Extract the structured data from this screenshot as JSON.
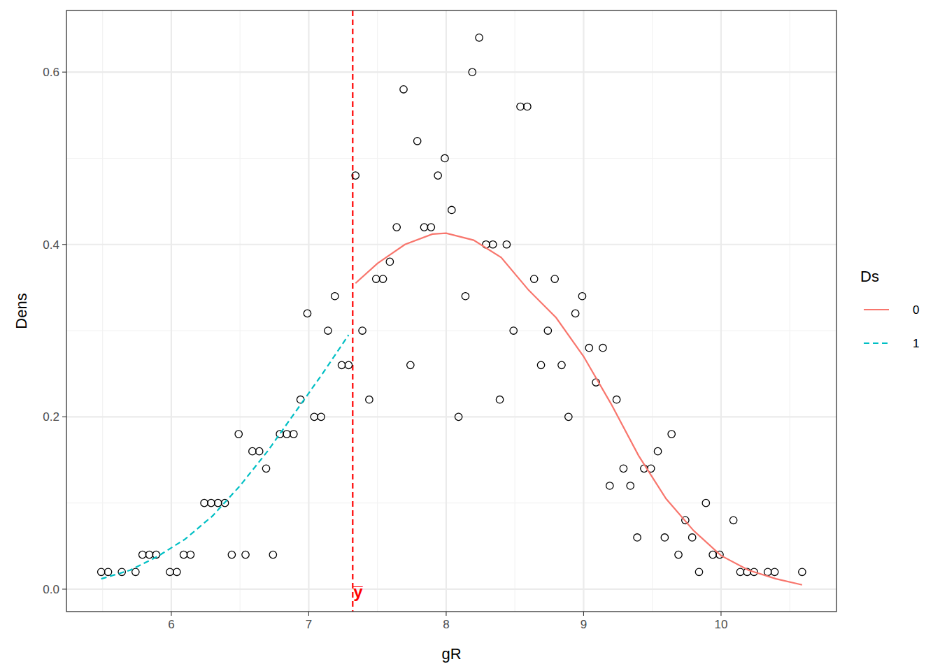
{
  "chart_data": {
    "type": "scatter",
    "x_label": "gR",
    "y_label": "Dens",
    "xlim": [
      5.237,
      10.84
    ],
    "ylim": [
      -0.026,
      0.6715
    ],
    "xticks": [
      6,
      7,
      8,
      9,
      10
    ],
    "yticks": [
      {
        "value": 0,
        "label": "0.0"
      },
      0.2,
      0.4,
      0.6
    ],
    "grid": true,
    "legend": "right",
    "legend_title": "Ds",
    "series": [
      {
        "type": "scatter",
        "marker": "open-circle",
        "color": "#000000",
        "x": [
          5.49,
          5.54,
          5.64,
          5.74,
          5.79,
          5.84,
          5.89,
          5.99,
          6.04,
          6.09,
          6.14,
          6.24,
          6.29,
          6.34,
          6.39,
          6.44,
          6.49,
          6.54,
          6.59,
          6.64,
          6.69,
          6.74,
          6.79,
          6.84,
          6.89,
          6.94,
          6.99,
          7.04,
          7.09,
          7.14,
          7.19,
          7.24,
          7.29,
          7.34,
          7.39,
          7.44,
          7.49,
          7.54,
          7.59,
          7.64,
          7.69,
          7.74,
          7.79,
          7.84,
          7.89,
          7.94,
          7.99,
          8.04,
          8.09,
          8.14,
          8.19,
          8.24,
          8.29,
          8.34,
          8.39,
          8.44,
          8.49,
          8.54,
          8.59,
          8.64,
          8.69,
          8.74,
          8.79,
          8.84,
          8.89,
          8.94,
          8.99,
          9.04,
          9.09,
          9.14,
          9.19,
          9.24,
          9.29,
          9.34,
          9.39,
          9.44,
          9.49,
          9.54,
          9.59,
          9.64,
          9.69,
          9.74,
          9.79,
          9.84,
          9.89,
          9.94,
          9.99,
          10.09,
          10.14,
          10.19,
          10.24,
          10.34,
          10.39,
          10.59
        ],
        "values": [
          0.02,
          0.02,
          0.02,
          0.02,
          0.04,
          0.04,
          0.04,
          0.02,
          0.02,
          0.04,
          0.04,
          0.1,
          0.1,
          0.1,
          0.1,
          0.04,
          0.18,
          0.04,
          0.16,
          0.16,
          0.14,
          0.04,
          0.18,
          0.18,
          0.18,
          0.22,
          0.32,
          0.2,
          0.2,
          0.3,
          0.34,
          0.26,
          0.26,
          0.48,
          0.3,
          0.22,
          0.36,
          0.36,
          0.38,
          0.42,
          0.58,
          0.26,
          0.52,
          0.42,
          0.42,
          0.48,
          0.5,
          0.44,
          0.2,
          0.34,
          0.6,
          0.64,
          0.4,
          0.4,
          0.22,
          0.4,
          0.3,
          0.56,
          0.56,
          0.36,
          0.26,
          0.3,
          0.36,
          0.26,
          0.2,
          0.32,
          0.34,
          0.28,
          0.24,
          0.28,
          0.12,
          0.22,
          0.14,
          0.12,
          0.06,
          0.14,
          0.14,
          0.16,
          0.06,
          0.18,
          0.04,
          0.08,
          0.06,
          0.02,
          0.1,
          0.04,
          0.04,
          0.08,
          0.02,
          0.02,
          0.02,
          0.02,
          0.02,
          0.02
        ]
      },
      {
        "name": "0",
        "type": "line",
        "line_style": "solid",
        "color": "#F8766D",
        "x": [
          7.34,
          7.5,
          7.7,
          7.9,
          8.0,
          8.2,
          8.4,
          8.6,
          8.8,
          9.0,
          9.2,
          9.4,
          9.6,
          9.8,
          10.0,
          10.2,
          10.4,
          10.59
        ],
        "values": [
          0.355,
          0.378,
          0.4,
          0.412,
          0.413,
          0.405,
          0.385,
          0.347,
          0.315,
          0.27,
          0.215,
          0.155,
          0.105,
          0.068,
          0.039,
          0.022,
          0.012,
          0.005
        ]
      },
      {
        "name": "1",
        "type": "line",
        "line_style": "dashed",
        "color": "#00BFC4",
        "x": [
          5.49,
          5.7,
          5.9,
          6.1,
          6.3,
          6.5,
          6.7,
          6.9,
          7.1,
          7.29
        ],
        "values": [
          0.012,
          0.022,
          0.038,
          0.058,
          0.085,
          0.12,
          0.16,
          0.205,
          0.25,
          0.295
        ]
      }
    ],
    "annotations": [
      {
        "type": "vline",
        "x": 7.32,
        "label": "y̅",
        "color": "#FF0000",
        "line_style": "dashed"
      }
    ]
  }
}
